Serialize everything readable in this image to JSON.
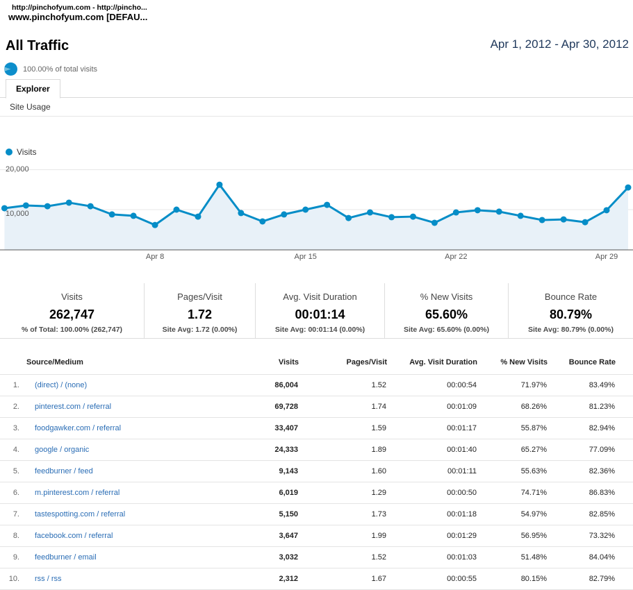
{
  "window": {
    "line1": "http://pinchofyum.com - http://pincho...",
    "line2": "www.pinchofyum.com [DEFAU..."
  },
  "header": {
    "title": "All Traffic",
    "date_range": "Apr 1, 2012 - Apr 30, 2012",
    "percent_label": "100.00% of total visits"
  },
  "tabs": {
    "explorer": "Explorer",
    "subtab": "Site Usage"
  },
  "chart_data": {
    "type": "line",
    "legend": "Visits",
    "line_color": "#058dc7",
    "area_color": "#e8f1f8",
    "x": [
      "Apr 1",
      "Apr 2",
      "Apr 3",
      "Apr 4",
      "Apr 5",
      "Apr 6",
      "Apr 7",
      "Apr 8",
      "Apr 9",
      "Apr 10",
      "Apr 11",
      "Apr 12",
      "Apr 13",
      "Apr 14",
      "Apr 15",
      "Apr 16",
      "Apr 17",
      "Apr 18",
      "Apr 19",
      "Apr 20",
      "Apr 21",
      "Apr 22",
      "Apr 23",
      "Apr 24",
      "Apr 25",
      "Apr 26",
      "Apr 27",
      "Apr 28",
      "Apr 29",
      "Apr 30"
    ],
    "series": [
      {
        "name": "Visits",
        "values": [
          10350,
          11050,
          10850,
          11750,
          10850,
          8800,
          8450,
          6150,
          10000,
          8250,
          16250,
          9150,
          7050,
          8800,
          10000,
          11200,
          7900,
          9300,
          8100,
          8250,
          6700,
          9300,
          9850,
          9500,
          8450,
          7400,
          7550,
          6850,
          9850,
          15550
        ]
      }
    ],
    "x_tick_labels": [
      "Apr 8",
      "Apr 15",
      "Apr 22",
      "Apr 29"
    ],
    "x_tick_days": [
      8,
      15,
      22,
      29
    ],
    "y_ticks": [
      20000,
      10000
    ],
    "y_tick_labels": [
      "20,000",
      "10,000"
    ],
    "ylim": [
      0,
      21500
    ],
    "grid": true,
    "legend_position": "top-left"
  },
  "stats": [
    {
      "label": "Visits",
      "value": "262,747",
      "sub": "% of Total: 100.00% (262,747)"
    },
    {
      "label": "Pages/Visit",
      "value": "1.72",
      "sub": "Site Avg: 1.72 (0.00%)"
    },
    {
      "label": "Avg. Visit Duration",
      "value": "00:01:14",
      "sub": "Site Avg: 00:01:14 (0.00%)"
    },
    {
      "label": "% New Visits",
      "value": "65.60%",
      "sub": "Site Avg: 65.60% (0.00%)"
    },
    {
      "label": "Bounce Rate",
      "value": "80.79%",
      "sub": "Site Avg: 80.79% (0.00%)"
    }
  ],
  "table": {
    "columns": [
      "Source/Medium",
      "Visits",
      "Pages/Visit",
      "Avg. Visit Duration",
      "% New Visits",
      "Bounce Rate"
    ],
    "rows": [
      {
        "rank": "1.",
        "source": "(direct) / (none)",
        "visits": "86,004",
        "pages_visit": "1.52",
        "duration": "00:00:54",
        "new_visits": "71.97%",
        "bounce": "83.49%"
      },
      {
        "rank": "2.",
        "source": "pinterest.com / referral",
        "visits": "69,728",
        "pages_visit": "1.74",
        "duration": "00:01:09",
        "new_visits": "68.26%",
        "bounce": "81.23%"
      },
      {
        "rank": "3.",
        "source": "foodgawker.com / referral",
        "visits": "33,407",
        "pages_visit": "1.59",
        "duration": "00:01:17",
        "new_visits": "55.87%",
        "bounce": "82.94%"
      },
      {
        "rank": "4.",
        "source": "google / organic",
        "visits": "24,333",
        "pages_visit": "1.89",
        "duration": "00:01:40",
        "new_visits": "65.27%",
        "bounce": "77.09%"
      },
      {
        "rank": "5.",
        "source": "feedburner / feed",
        "visits": "9,143",
        "pages_visit": "1.60",
        "duration": "00:01:11",
        "new_visits": "55.63%",
        "bounce": "82.36%"
      },
      {
        "rank": "6.",
        "source": "m.pinterest.com / referral",
        "visits": "6,019",
        "pages_visit": "1.29",
        "duration": "00:00:50",
        "new_visits": "74.71%",
        "bounce": "86.83%"
      },
      {
        "rank": "7.",
        "source": "tastespotting.com / referral",
        "visits": "5,150",
        "pages_visit": "1.73",
        "duration": "00:01:18",
        "new_visits": "54.97%",
        "bounce": "82.85%"
      },
      {
        "rank": "8.",
        "source": "facebook.com / referral",
        "visits": "3,647",
        "pages_visit": "1.99",
        "duration": "00:01:29",
        "new_visits": "56.95%",
        "bounce": "73.32%"
      },
      {
        "rank": "9.",
        "source": "feedburner / email",
        "visits": "3,032",
        "pages_visit": "1.52",
        "duration": "00:01:03",
        "new_visits": "51.48%",
        "bounce": "84.04%"
      },
      {
        "rank": "10.",
        "source": "rss / rss",
        "visits": "2,312",
        "pages_visit": "1.67",
        "duration": "00:00:55",
        "new_visits": "80.15%",
        "bounce": "82.79%"
      }
    ]
  }
}
